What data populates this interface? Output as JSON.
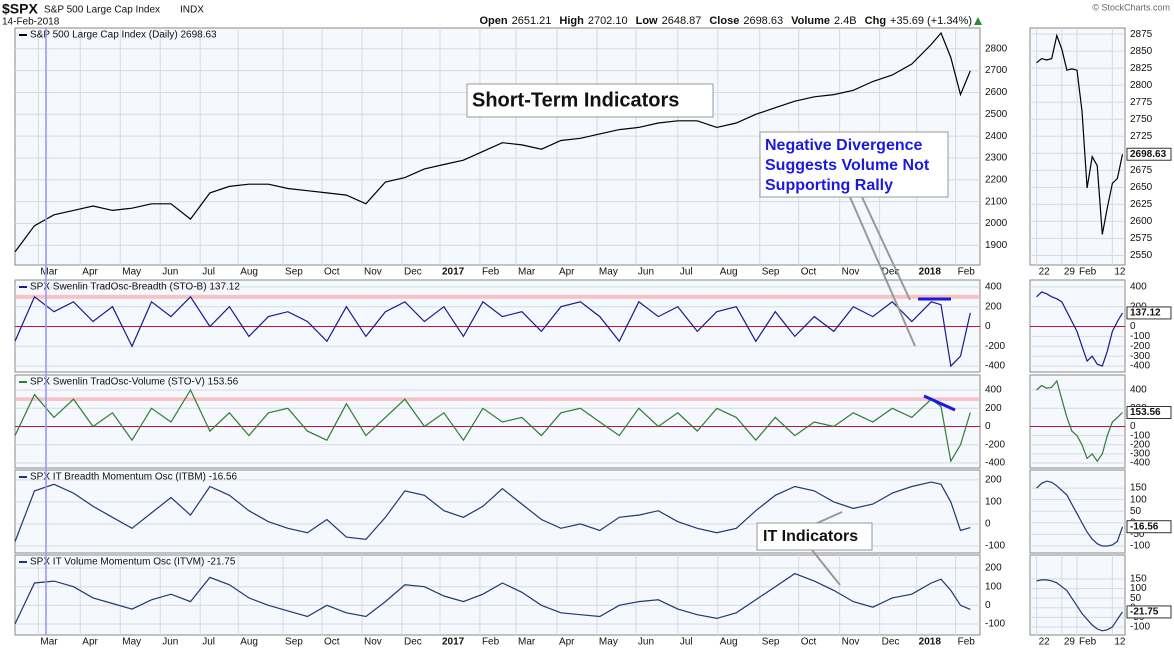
{
  "header": {
    "symbol": "$SPX",
    "name": "S&P 500 Large Cap Index",
    "exchange": "INDX",
    "date": "14-Feb-2018",
    "quote": [
      {
        "label": "Open",
        "value": "2651.21"
      },
      {
        "label": "High",
        "value": "2702.10"
      },
      {
        "label": "Low",
        "value": "2648.87"
      },
      {
        "label": "Close",
        "value": "2698.63"
      },
      {
        "label": "Volume",
        "value": "2.4B"
      },
      {
        "label": "Chg",
        "value": "+35.69 (+1.34%)"
      }
    ],
    "credit": "© StockCharts.com"
  },
  "annotations": [
    "Short-Term Indicators",
    "Negative Divergence",
    "Suggests Volume Not",
    "Supporting Rally",
    "IT Indicators"
  ],
  "chart_data": [
    {
      "type": "line",
      "title": "S&P 500 Large Cap Index (Daily) 2698.63",
      "color": "#000000",
      "x": [
        0,
        2,
        4,
        6,
        8,
        10,
        12,
        14,
        16,
        18,
        20,
        22,
        24,
        26,
        28,
        30,
        32,
        34,
        36,
        38,
        40,
        42,
        44,
        46,
        48,
        50,
        52,
        54,
        56,
        58,
        60,
        62,
        64,
        66,
        68,
        70,
        72,
        74,
        76,
        78,
        80,
        82,
        84,
        86,
        88,
        90,
        92,
        94,
        95,
        96,
        97,
        98
      ],
      "values": [
        1870,
        1990,
        2040,
        2060,
        2080,
        2060,
        2070,
        2090,
        2090,
        2020,
        2140,
        2170,
        2180,
        2180,
        2160,
        2150,
        2140,
        2130,
        2090,
        2190,
        2210,
        2250,
        2270,
        2290,
        2330,
        2370,
        2360,
        2340,
        2380,
        2390,
        2410,
        2430,
        2440,
        2460,
        2470,
        2470,
        2440,
        2460,
        2500,
        2530,
        2560,
        2580,
        2590,
        2610,
        2650,
        2680,
        2730,
        2820,
        2872,
        2760,
        2590,
        2698.63
      ],
      "xlim": [
        0,
        99
      ],
      "ylim": [
        1810,
        2895
      ],
      "yticks": [
        1900,
        2000,
        2100,
        2200,
        2300,
        2400,
        2500,
        2600,
        2700,
        2800
      ],
      "xticks": [
        {
          "value": 2.4,
          "label": "Mar"
        },
        {
          "value": 6.7,
          "label": "Apr"
        },
        {
          "value": 10.8,
          "label": "May"
        },
        {
          "value": 14.9,
          "label": "Jun"
        },
        {
          "value": 19,
          "label": "Jul"
        },
        {
          "value": 22.9,
          "label": "Aug"
        },
        {
          "value": 27.5,
          "label": "Sep"
        },
        {
          "value": 31.5,
          "label": "Oct"
        },
        {
          "value": 35.6,
          "label": "Nov"
        },
        {
          "value": 39.7,
          "label": "Dec"
        },
        {
          "value": 43.6,
          "label": "2017"
        },
        {
          "value": 47.7,
          "label": "Feb"
        },
        {
          "value": 51.4,
          "label": "Mar"
        },
        {
          "value": 55.6,
          "label": "Apr"
        },
        {
          "value": 59.7,
          "label": "May"
        },
        {
          "value": 63.7,
          "label": "Jun"
        },
        {
          "value": 68,
          "label": "Jul"
        },
        {
          "value": 72.1,
          "label": "Aug"
        },
        {
          "value": 76.4,
          "label": "Sep"
        },
        {
          "value": 80.4,
          "label": "Oct"
        },
        {
          "value": 84.6,
          "label": "Nov"
        },
        {
          "value": 88.7,
          "label": "Dec"
        },
        {
          "value": 92.5,
          "label": "2018"
        },
        {
          "value": 96.5,
          "label": "Feb"
        }
      ]
    },
    {
      "type": "line",
      "title": "SPX Swenlin TradOsc-Breadth (STO-B) 137.12",
      "color": "#1a1a8c",
      "x": [
        0,
        2,
        4,
        6,
        8,
        10,
        12,
        14,
        16,
        18,
        20,
        22,
        24,
        26,
        28,
        30,
        32,
        34,
        36,
        38,
        40,
        42,
        44,
        46,
        48,
        50,
        52,
        54,
        56,
        58,
        60,
        62,
        64,
        66,
        68,
        70,
        72,
        74,
        76,
        78,
        80,
        82,
        84,
        86,
        88,
        90,
        92,
        94,
        95,
        96,
        97,
        98
      ],
      "values": [
        -150,
        300,
        150,
        250,
        50,
        200,
        -200,
        250,
        100,
        300,
        0,
        200,
        -100,
        100,
        150,
        50,
        -150,
        200,
        -100,
        150,
        250,
        50,
        200,
        -100,
        250,
        100,
        150,
        -50,
        200,
        250,
        100,
        -150,
        250,
        100,
        200,
        -50,
        150,
        200,
        -150,
        150,
        -100,
        100,
        -50,
        200,
        100,
        250,
        50,
        250,
        220,
        -400,
        -300,
        137.12
      ],
      "xlim": [
        0,
        99
      ],
      "ylim": [
        -460,
        470
      ],
      "yticks": [
        400,
        200,
        0,
        -200,
        -400
      ],
      "ref_line": 0,
      "ref_band": [
        280,
        320
      ]
    },
    {
      "type": "line",
      "title": "SPX Swenlin TradOsc-Volume (STO-V) 153.56",
      "color": "#2e7d32",
      "x": [
        0,
        2,
        4,
        6,
        8,
        10,
        12,
        14,
        16,
        18,
        20,
        22,
        24,
        26,
        28,
        30,
        32,
        34,
        36,
        38,
        40,
        42,
        44,
        46,
        48,
        50,
        52,
        54,
        56,
        58,
        60,
        62,
        64,
        66,
        68,
        70,
        72,
        74,
        76,
        78,
        80,
        82,
        84,
        86,
        88,
        90,
        92,
        94,
        95,
        96,
        97,
        98
      ],
      "values": [
        -100,
        350,
        100,
        300,
        0,
        150,
        -150,
        200,
        50,
        400,
        -50,
        150,
        -100,
        150,
        200,
        -50,
        -150,
        250,
        -100,
        100,
        300,
        0,
        150,
        -150,
        200,
        50,
        100,
        -100,
        150,
        200,
        50,
        -100,
        200,
        0,
        150,
        -50,
        200,
        100,
        -150,
        100,
        -100,
        50,
        0,
        150,
        50,
        200,
        100,
        300,
        220,
        -380,
        -200,
        153.56
      ],
      "xlim": [
        0,
        99
      ],
      "ylim": [
        -455,
        565
      ],
      "yticks": [
        400,
        200,
        0,
        -200,
        -400
      ],
      "ref_line": 0,
      "ref_band": [
        280,
        320
      ]
    },
    {
      "type": "line",
      "title": "SPX IT Breadth Momentum Osc (ITBM) -16.56",
      "color": "#1f3a6e",
      "x": [
        0,
        2,
        4,
        6,
        8,
        10,
        12,
        14,
        16,
        18,
        20,
        22,
        24,
        26,
        28,
        30,
        32,
        34,
        36,
        38,
        40,
        42,
        44,
        46,
        48,
        50,
        52,
        54,
        56,
        58,
        60,
        62,
        64,
        66,
        68,
        70,
        72,
        74,
        76,
        78,
        80,
        82,
        84,
        86,
        88,
        90,
        92,
        94,
        95,
        96,
        97,
        98
      ],
      "values": [
        -80,
        150,
        180,
        140,
        80,
        30,
        -20,
        50,
        120,
        40,
        170,
        130,
        60,
        10,
        -20,
        -40,
        20,
        -60,
        -70,
        30,
        150,
        130,
        60,
        30,
        80,
        160,
        90,
        20,
        -20,
        0,
        -30,
        30,
        40,
        60,
        10,
        -20,
        -40,
        -20,
        60,
        130,
        170,
        150,
        100,
        70,
        90,
        140,
        170,
        190,
        180,
        100,
        -30,
        -16.56
      ],
      "xlim": [
        0,
        99
      ],
      "ylim": [
        -132,
        245
      ],
      "yticks": [
        200,
        100,
        0,
        -100
      ]
    },
    {
      "type": "line",
      "title": "SPX IT Volume Momentum Osc (ITVM) -21.75",
      "color": "#1f3a6e",
      "x": [
        0,
        2,
        4,
        6,
        8,
        10,
        12,
        14,
        16,
        18,
        20,
        22,
        24,
        26,
        28,
        30,
        32,
        34,
        36,
        38,
        40,
        42,
        44,
        46,
        48,
        50,
        52,
        54,
        56,
        58,
        60,
        62,
        64,
        66,
        68,
        70,
        72,
        74,
        76,
        78,
        80,
        82,
        84,
        86,
        88,
        90,
        92,
        94,
        95,
        96,
        97,
        98
      ],
      "values": [
        -100,
        120,
        130,
        100,
        40,
        10,
        -20,
        30,
        60,
        20,
        150,
        110,
        40,
        0,
        -30,
        -60,
        0,
        -40,
        -60,
        20,
        110,
        100,
        50,
        20,
        60,
        120,
        70,
        0,
        -40,
        -50,
        -60,
        0,
        20,
        30,
        -20,
        -50,
        -70,
        -40,
        30,
        100,
        170,
        130,
        80,
        20,
        -10,
        40,
        60,
        120,
        140,
        80,
        0,
        -21.75
      ],
      "xlim": [
        0,
        99
      ],
      "ylim": [
        -159,
        270
      ],
      "yticks": [
        200,
        100,
        0,
        -100
      ],
      "xticks": [
        {
          "value": 2.4,
          "label": "Mar"
        },
        {
          "value": 6.7,
          "label": "Apr"
        },
        {
          "value": 10.8,
          "label": "May"
        },
        {
          "value": 14.9,
          "label": "Jun"
        },
        {
          "value": 19,
          "label": "Jul"
        },
        {
          "value": 22.9,
          "label": "Aug"
        },
        {
          "value": 27.5,
          "label": "Sep"
        },
        {
          "value": 31.5,
          "label": "Oct"
        },
        {
          "value": 35.6,
          "label": "Nov"
        },
        {
          "value": 39.7,
          "label": "Dec"
        },
        {
          "value": 43.6,
          "label": "2017"
        },
        {
          "value": 47.7,
          "label": "Feb"
        },
        {
          "value": 51.4,
          "label": "Mar"
        },
        {
          "value": 55.6,
          "label": "Apr"
        },
        {
          "value": 59.7,
          "label": "May"
        },
        {
          "value": 63.7,
          "label": "Jun"
        },
        {
          "value": 68,
          "label": "Jul"
        },
        {
          "value": 72.1,
          "label": "Aug"
        },
        {
          "value": 76.4,
          "label": "Sep"
        },
        {
          "value": 80.4,
          "label": "Oct"
        },
        {
          "value": 84.6,
          "label": "Nov"
        },
        {
          "value": 88.7,
          "label": "Dec"
        },
        {
          "value": 92.5,
          "label": "2018"
        },
        {
          "value": 96.5,
          "label": "Feb"
        }
      ]
    },
    {
      "type": "line",
      "color": "#000000",
      "value_box": true,
      "x": [
        0,
        1,
        2,
        3,
        4,
        5,
        6,
        7,
        8,
        9,
        10,
        11,
        12,
        13,
        14,
        15,
        16,
        17
      ],
      "values": [
        2833,
        2839,
        2837,
        2839,
        2873,
        2853,
        2822,
        2824,
        2822,
        2762,
        2649,
        2695,
        2682,
        2581,
        2620,
        2656,
        2663,
        2698.63
      ],
      "xlim": [
        -1.3,
        17.5
      ],
      "ylim": [
        2536,
        2884
      ],
      "yticks": [
        2875,
        2850,
        2825,
        2800,
        2775,
        2750,
        2725,
        2700,
        2675,
        2650,
        2625,
        2600,
        2575,
        2550
      ],
      "xticks": [
        {
          "value": 0,
          "label": "22"
        },
        {
          "value": 5,
          "label": "29"
        },
        {
          "value": 8,
          "label": "Feb"
        },
        {
          "value": 15,
          "label": "12"
        }
      ]
    },
    {
      "type": "line",
      "color": "#1a1a8c",
      "value_box": true,
      "x": [
        0,
        1,
        2,
        3,
        4,
        5,
        6,
        7,
        8,
        9,
        10,
        11,
        12,
        13,
        14,
        15,
        16,
        17
      ],
      "values": [
        300,
        350,
        330,
        300,
        280,
        250,
        150,
        50,
        -50,
        -200,
        -350,
        -300,
        -380,
        -400,
        -250,
        -50,
        50,
        137.12
      ],
      "xlim": [
        -1.3,
        17.5
      ],
      "ylim": [
        -460,
        470
      ],
      "yticks": [
        400,
        200,
        0,
        -100,
        -200,
        -300,
        -400
      ],
      "ref_line": 0
    },
    {
      "type": "line",
      "color": "#2e7d32",
      "value_box": true,
      "x": [
        0,
        1,
        2,
        3,
        4,
        5,
        6,
        7,
        8,
        9,
        10,
        11,
        12,
        13,
        14,
        15,
        16,
        17
      ],
      "values": [
        400,
        450,
        420,
        430,
        500,
        300,
        100,
        -50,
        -100,
        -200,
        -350,
        -300,
        -380,
        -300,
        -100,
        50,
        100,
        153.56
      ],
      "xlim": [
        -1.3,
        17.5
      ],
      "ylim": [
        -455,
        565
      ],
      "yticks": [
        400,
        200,
        0,
        -100,
        -200,
        -300,
        -400
      ],
      "ref_line": 0
    },
    {
      "type": "line",
      "color": "#1f3a6e",
      "value_box": true,
      "x": [
        0,
        1,
        2,
        3,
        4,
        5,
        6,
        7,
        8,
        9,
        10,
        11,
        12,
        13,
        14,
        15,
        16,
        17
      ],
      "values": [
        150,
        170,
        180,
        175,
        160,
        140,
        120,
        80,
        40,
        0,
        -40,
        -70,
        -90,
        -100,
        -100,
        -95,
        -80,
        -16.56
      ],
      "xlim": [
        -1.3,
        17.5
      ],
      "ylim": [
        -130,
        228
      ],
      "yticks": [
        150,
        100,
        50,
        0,
        -50,
        -100
      ]
    },
    {
      "type": "line",
      "color": "#1f3a6e",
      "value_box": true,
      "x": [
        0,
        1,
        2,
        3,
        4,
        5,
        6,
        7,
        8,
        9,
        10,
        11,
        12,
        13,
        14,
        15,
        16,
        17
      ],
      "values": [
        140,
        145,
        145,
        140,
        130,
        110,
        90,
        50,
        10,
        -30,
        -60,
        -90,
        -110,
        -120,
        -115,
        -100,
        -60,
        -21.75
      ],
      "xlim": [
        -1.3,
        17.5
      ],
      "ylim": [
        -142,
        275
      ],
      "yticks": [
        150,
        100,
        50,
        0,
        -50,
        -100
      ],
      "xticks": [
        {
          "value": 0,
          "label": "22"
        },
        {
          "value": 5,
          "label": "29"
        },
        {
          "value": 8,
          "label": "Feb"
        },
        {
          "value": 15,
          "label": "12"
        }
      ]
    }
  ]
}
